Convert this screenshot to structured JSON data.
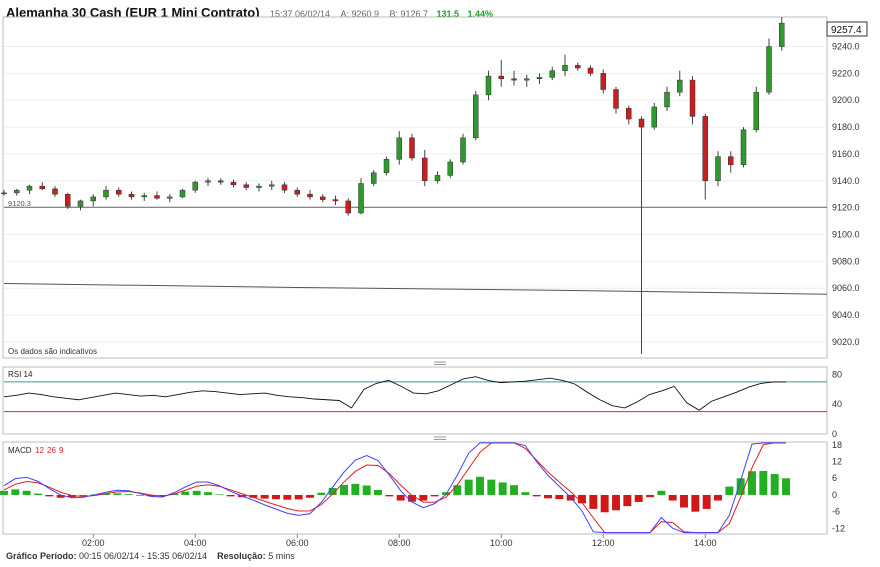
{
  "header": {
    "title": "Alemanha 30 Cash (EUR 1 Mini Contrato)",
    "time": "15:37 06/02/14",
    "ask": "A: 9260.9",
    "bid": "B: 9126.7",
    "change": "131.5",
    "change_pct": "1.44%"
  },
  "notice": "Os dados são indicativos",
  "last_price_label": "9257.4",
  "ref_line_label": "9120.3",
  "footer": {
    "period_label": "Gráfico Período:",
    "period_value": "00:15 06/02/14 - 15:35 06/02/14",
    "resolution_label": "Resolução:",
    "resolution_value": "5 mins"
  },
  "colors": {
    "up": "#2e9a2e",
    "down": "#c62020",
    "macd_line": "#4040ff",
    "signal_line": "#e02020",
    "rsi_upper": "#3c9a9a",
    "rsi_lower": "#d03030"
  },
  "chart_data": [
    {
      "type": "candlestick",
      "title": "Alemanha 30 Cash (EUR 1 Mini Contrato)",
      "x_ticks": [
        "02:00",
        "04:00",
        "06:00",
        "08:00",
        "10:00",
        "12:00",
        "14:00"
      ],
      "y_ticks": [
        "9240.0",
        "9220.0",
        "9200.0",
        "9180.0",
        "9160.0",
        "9140.0",
        "9120.0",
        "9100.0",
        "9080.0",
        "9060.0",
        "9040.0",
        "9020.0"
      ],
      "ylim": [
        9008,
        9262
      ],
      "xlim": [
        "00:15",
        "15:35"
      ],
      "reference_line": 9120.3,
      "moving_average": [
        [
          "00:15",
          9063.5
        ],
        [
          "06:00",
          9060.5
        ],
        [
          "11:00",
          9058.5
        ],
        [
          "15:35",
          9055.5
        ]
      ],
      "last": 9257.4,
      "spike_low": {
        "time": "12:45",
        "low": 9011
      },
      "ohlc": [
        [
          "00:15",
          9131,
          9133,
          9129,
          9131
        ],
        [
          "00:30",
          9131,
          9134,
          9129,
          9133
        ],
        [
          "00:45",
          9133,
          9137,
          9130,
          9136
        ],
        [
          "01:00",
          9136,
          9139,
          9133,
          9134
        ],
        [
          "01:15",
          9134,
          9136,
          9128,
          9130
        ],
        [
          "01:30",
          9130,
          9131,
          9119,
          9121
        ],
        [
          "01:45",
          9121,
          9126,
          9118,
          9125
        ],
        [
          "02:00",
          9125,
          9130,
          9121,
          9128
        ],
        [
          "02:15",
          9128,
          9136,
          9126,
          9133
        ],
        [
          "02:30",
          9133,
          9135,
          9128,
          9130
        ],
        [
          "02:45",
          9130,
          9132,
          9126,
          9128
        ],
        [
          "03:00",
          9128,
          9131,
          9125,
          9129
        ],
        [
          "03:15",
          9129,
          9132,
          9126,
          9127
        ],
        [
          "03:30",
          9127,
          9130,
          9124,
          9128
        ],
        [
          "03:45",
          9128,
          9134,
          9127,
          9133
        ],
        [
          "04:00",
          9133,
          9140,
          9131,
          9139
        ],
        [
          "04:15",
          9139,
          9142,
          9136,
          9140
        ],
        [
          "04:30",
          9140,
          9142,
          9137,
          9139
        ],
        [
          "04:45",
          9139,
          9141,
          9135,
          9137
        ],
        [
          "05:00",
          9137,
          9139,
          9133,
          9135
        ],
        [
          "05:15",
          9135,
          9138,
          9132,
          9136
        ],
        [
          "05:30",
          9136,
          9140,
          9133,
          9137
        ],
        [
          "05:45",
          9137,
          9139,
          9131,
          9133
        ],
        [
          "06:00",
          9133,
          9135,
          9128,
          9130
        ],
        [
          "06:15",
          9130,
          9133,
          9126,
          9128
        ],
        [
          "06:30",
          9128,
          9130,
          9124,
          9126
        ],
        [
          "06:45",
          9126,
          9129,
          9122,
          9125
        ],
        [
          "07:00",
          9125,
          9127,
          9114,
          9116
        ],
        [
          "07:15",
          9116,
          9142,
          9115,
          9138
        ],
        [
          "07:30",
          9138,
          9148,
          9136,
          9146
        ],
        [
          "07:45",
          9146,
          9158,
          9144,
          9156
        ],
        [
          "08:00",
          9156,
          9177,
          9152,
          9172
        ],
        [
          "08:15",
          9172,
          9175,
          9155,
          9157
        ],
        [
          "08:30",
          9157,
          9163,
          9136,
          9140
        ],
        [
          "08:45",
          9140,
          9147,
          9138,
          9144
        ],
        [
          "09:00",
          9144,
          9156,
          9142,
          9154
        ],
        [
          "09:15",
          9154,
          9175,
          9152,
          9172
        ],
        [
          "09:30",
          9172,
          9207,
          9170,
          9204
        ],
        [
          "09:45",
          9204,
          9222,
          9200,
          9218
        ],
        [
          "10:00",
          9218,
          9230,
          9210,
          9216
        ],
        [
          "10:15",
          9216,
          9222,
          9211,
          9215
        ],
        [
          "10:30",
          9215,
          9219,
          9210,
          9216
        ],
        [
          "10:45",
          9216,
          9220,
          9212,
          9217
        ],
        [
          "11:00",
          9217,
          9225,
          9215,
          9222
        ],
        [
          "11:15",
          9222,
          9234,
          9218,
          9226
        ],
        [
          "11:30",
          9226,
          9228,
          9222,
          9224
        ],
        [
          "11:45",
          9224,
          9226,
          9218,
          9220
        ],
        [
          "12:00",
          9220,
          9223,
          9205,
          9208
        ],
        [
          "12:15",
          9208,
          9210,
          9190,
          9194
        ],
        [
          "12:30",
          9194,
          9196,
          9182,
          9186
        ],
        [
          "12:45",
          9186,
          9188,
          9011,
          9180
        ],
        [
          "13:00",
          9180,
          9198,
          9178,
          9195
        ],
        [
          "13:15",
          9195,
          9210,
          9192,
          9206
        ],
        [
          "13:30",
          9206,
          9222,
          9203,
          9215
        ],
        [
          "13:45",
          9215,
          9218,
          9182,
          9188
        ],
        [
          "14:00",
          9188,
          9190,
          9126,
          9140
        ],
        [
          "14:15",
          9140,
          9162,
          9136,
          9158
        ],
        [
          "14:30",
          9158,
          9162,
          9146,
          9152
        ],
        [
          "14:45",
          9152,
          9180,
          9150,
          9178
        ],
        [
          "15:00",
          9178,
          9210,
          9176,
          9206
        ],
        [
          "15:15",
          9206,
          9246,
          9204,
          9240
        ],
        [
          "15:30",
          9240,
          9262,
          9237,
          9257.4
        ]
      ]
    },
    {
      "type": "line",
      "title": "RSI 14",
      "y_ticks": [
        "80",
        "40",
        "0"
      ],
      "ylim": [
        0,
        90
      ],
      "bands": [
        70,
        30
      ],
      "series": [
        {
          "name": "RSI 14",
          "values": [
            50,
            52,
            55,
            53,
            50,
            48,
            46,
            49,
            52,
            55,
            53,
            51,
            52,
            50,
            53,
            56,
            58,
            57,
            55,
            53,
            54,
            55,
            52,
            50,
            49,
            47,
            46,
            45,
            35,
            60,
            68,
            72,
            64,
            55,
            54,
            58,
            66,
            74,
            77,
            72,
            69,
            70,
            71,
            73,
            75,
            72,
            67,
            56,
            46,
            38,
            35,
            43,
            53,
            58,
            64,
            42,
            32,
            44,
            50,
            56,
            63,
            68,
            70,
            70
          ]
        }
      ]
    },
    {
      "type": "bar",
      "title": "MACD",
      "params": [
        "12",
        "26",
        "9"
      ],
      "y_ticks": [
        "18",
        "12",
        "6",
        "0",
        "-6",
        "-12"
      ],
      "ylim": [
        -14,
        19
      ],
      "series": [
        {
          "name": "histogram",
          "values": [
            1.5,
            2,
            1.5,
            0.5,
            -0.5,
            -1,
            -0.8,
            -0.3,
            0.2,
            0.5,
            0.6,
            0.3,
            -0.2,
            -0.5,
            -0.3,
            0.5,
            1.2,
            1.5,
            1,
            0.2,
            -0.5,
            -0.8,
            -1,
            -1.3,
            -1.5,
            -1.7,
            -1.6,
            -1,
            0.8,
            2.5,
            3.6,
            4,
            3.4,
            1.8,
            -0.5,
            -2,
            -2.4,
            -2,
            -0.5,
            1,
            3.5,
            5.5,
            6.5,
            5.5,
            4.5,
            3.5,
            1,
            -0.5,
            -1.2,
            -1.5,
            -2,
            -3,
            -5,
            -6.2,
            -5.5,
            -4,
            -2.5,
            -0.8,
            1.5,
            -2,
            -4.5,
            -6,
            -5,
            -2,
            3,
            6,
            8.5,
            8.6,
            7.5,
            6
          ]
        }
      ]
    }
  ]
}
